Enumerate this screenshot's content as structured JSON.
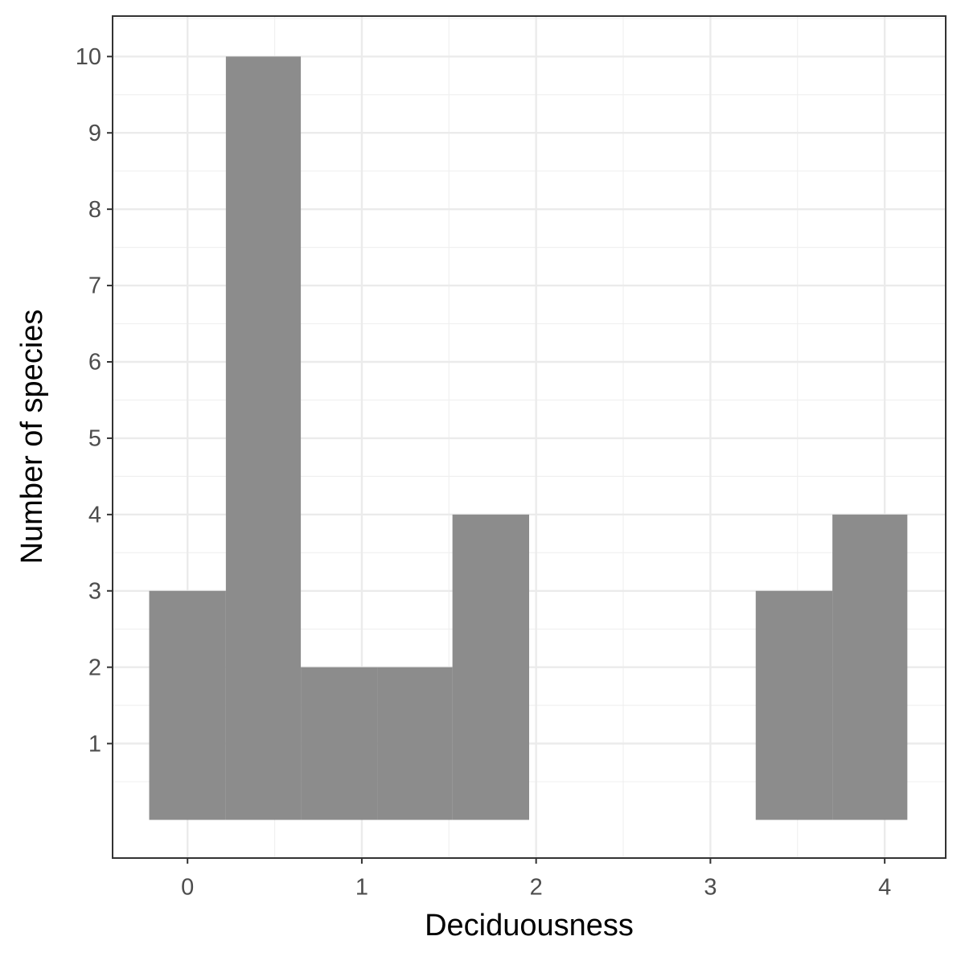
{
  "chart_data": {
    "type": "histogram",
    "x_label": "Deciduousness",
    "y_label": "Number of species",
    "bins": [
      -0.22,
      0.22,
      0.65,
      1.09,
      1.52,
      1.96,
      2.39,
      2.83,
      3.26,
      3.7,
      4.13
    ],
    "counts": [
      3,
      10,
      2,
      2,
      4,
      0,
      0,
      0,
      3,
      4
    ],
    "color": "#8c8c8c",
    "xlim": [
      -0.43,
      4.35
    ],
    "ylim": [
      -0.5,
      10.53
    ],
    "xticks": [
      0,
      1,
      2,
      3,
      4
    ],
    "yticks": [
      1,
      2,
      3,
      4,
      5,
      6,
      7,
      8,
      9,
      10
    ],
    "grid": true
  }
}
